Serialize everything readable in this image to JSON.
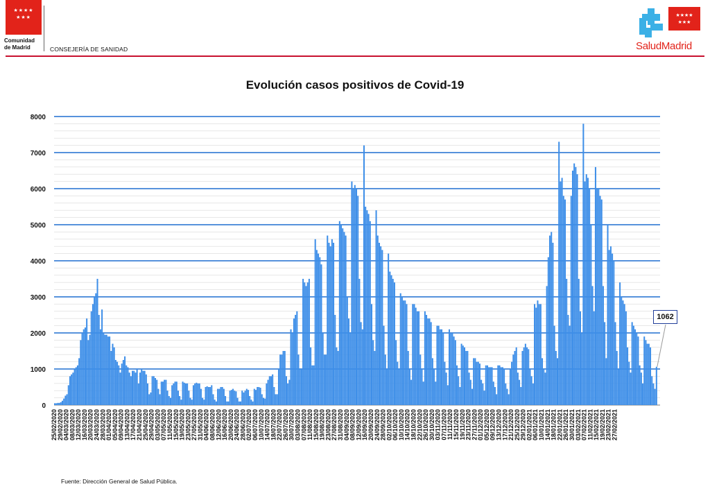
{
  "header": {
    "org_name_line1": "Comunidad",
    "org_name_line2": "de Madrid",
    "department": "CONSEJERÍA DE SANIDAD",
    "brand": "SaludMadrid",
    "brand_color": "#e2231a"
  },
  "footer": {
    "source": "Fuente: Dirección General de Salud Pública."
  },
  "chart_data": {
    "type": "bar",
    "title": "Evolución casos positivos de Covid-19",
    "xlabel": "",
    "ylabel": "",
    "ylim": [
      0,
      8000
    ],
    "yticks": [
      0,
      1000,
      2000,
      3000,
      4000,
      5000,
      6000,
      7000,
      8000
    ],
    "grid": true,
    "bar_color": "#3d8ee8",
    "gridline_color": "#1f6fd1",
    "x_tick_labels": [
      "25/02/2020",
      "29/02/2020",
      "04/03/2020",
      "08/03/2020",
      "12/03/2020",
      "16/03/2020",
      "20/03/2020",
      "24/03/2020",
      "28/03/2020",
      "01/04/2020",
      "05/04/2020",
      "09/04/2020",
      "13/04/2020",
      "17/04/2020",
      "21/04/2020",
      "25/04/2020",
      "29/04/2020",
      "03/05/2020",
      "07/05/2020",
      "11/05/2020",
      "15/05/2020",
      "19/05/2020",
      "23/05/2020",
      "27/05/2020",
      "31/05/2020",
      "04/06/2020",
      "08/06/2020",
      "12/06/2020",
      "16/06/2020",
      "20/06/2020",
      "24/06/2020",
      "28/06/2020",
      "02/07/2020",
      "06/07/2020",
      "10/07/2020",
      "14/07/2020",
      "18/07/2020",
      "22/07/2020",
      "26/07/2020",
      "30/07/2020",
      "03/08/2020",
      "07/08/2020",
      "11/08/2020",
      "15/08/2020",
      "19/08/2020",
      "23/08/2020",
      "27/08/2020",
      "31/08/2020",
      "04/09/2020",
      "08/09/2020",
      "12/09/2020",
      "16/09/2020",
      "20/09/2020",
      "24/09/2020",
      "28/09/2020",
      "02/10/2020",
      "06/10/2020",
      "10/10/2020",
      "14/10/2020",
      "18/10/2020",
      "22/10/2020",
      "26/10/2020",
      "30/10/2020",
      "03/11/2020",
      "07/11/2020",
      "11/11/2020",
      "15/11/2020",
      "19/11/2020",
      "23/11/2020",
      "27/11/2020",
      "01/12/2020",
      "05/12/2020",
      "09/12/2020",
      "13/12/2020",
      "17/12/2020",
      "21/12/2020",
      "25/12/2020",
      "29/12/2020",
      "02/01/2021",
      "06/01/2021",
      "10/01/2021",
      "14/01/2021",
      "18/01/2021",
      "22/01/2021",
      "26/01/2021",
      "30/01/2021",
      "03/02/2021",
      "07/02/2021",
      "11/02/2021",
      "15/02/2021",
      "19/02/2021",
      "23/02/2021",
      "27/02/2021"
    ],
    "periods_per_label": 4,
    "series": [
      {
        "values": [
          50,
          50,
          60,
          60,
          80,
          120,
          180,
          260,
          300,
          550,
          800,
          850,
          900,
          1000,
          1050,
          1100,
          1300,
          1800,
          2000,
          2100,
          2150,
          2400,
          1800,
          1950,
          2600,
          2800,
          3000,
          3100,
          3500,
          2500,
          2100,
          2650,
          2000,
          1950,
          1950,
          1900,
          1900,
          1500,
          1700,
          1600,
          1250,
          1200,
          1100,
          900,
          1150,
          1250,
          1350,
          1100,
          1050,
          900,
          800,
          950,
          950,
          900,
          1000,
          600,
          900,
          1000,
          950,
          950,
          850,
          600,
          300,
          350,
          800,
          800,
          750,
          700,
          450,
          300,
          650,
          650,
          700,
          700,
          400,
          250,
          200,
          550,
          600,
          650,
          650,
          400,
          250,
          150,
          650,
          620,
          600,
          600,
          400,
          200,
          150,
          550,
          600,
          620,
          600,
          600,
          450,
          200,
          150,
          500,
          520,
          500,
          500,
          550,
          300,
          150,
          100,
          450,
          450,
          500,
          500,
          450,
          250,
          100,
          100,
          400,
          420,
          450,
          400,
          380,
          200,
          100,
          100,
          400,
          350,
          400,
          450,
          420,
          250,
          150,
          100,
          450,
          420,
          500,
          500,
          480,
          300,
          200,
          180,
          600,
          700,
          800,
          800,
          850,
          500,
          300,
          300,
          1000,
          1400,
          1400,
          1500,
          1500,
          800,
          600,
          700,
          2100,
          2000,
          2400,
          2500,
          2600,
          1400,
          1000,
          1000,
          3500,
          3400,
          3300,
          3400,
          3500,
          1600,
          1100,
          1100,
          4600,
          4300,
          4200,
          4100,
          3900,
          2000,
          1400,
          1400,
          4700,
          4500,
          4400,
          4600,
          4500,
          2500,
          1600,
          1500,
          5100,
          5000,
          4900,
          4800,
          4700,
          3000,
          2400,
          2000,
          6200,
          6000,
          6100,
          6000,
          5800,
          3500,
          2300,
          2100,
          7200,
          5500,
          5400,
          5300,
          5100,
          2800,
          1800,
          1500,
          5400,
          4700,
          4500,
          4400,
          4300,
          2200,
          1400,
          1000,
          4200,
          3700,
          3600,
          3500,
          3400,
          1800,
          1200,
          1000,
          3100,
          3000,
          2900,
          2900,
          2800,
          1500,
          1000,
          700,
          2800,
          2800,
          2700,
          2600,
          2600,
          1400,
          1000,
          650,
          2600,
          2500,
          2400,
          2400,
          2300,
          1300,
          1000,
          650,
          2200,
          2200,
          2100,
          2100,
          2000,
          1200,
          900,
          550,
          2100,
          2000,
          2000,
          1900,
          1800,
          1100,
          800,
          500,
          1700,
          1650,
          1600,
          1500,
          1500,
          900,
          700,
          450,
          1300,
          1300,
          1200,
          1200,
          1150,
          700,
          600,
          400,
          1100,
          1100,
          1050,
          1050,
          1050,
          650,
          500,
          300,
          1100,
          1100,
          1050,
          1050,
          1000,
          600,
          450,
          300,
          1000,
          1200,
          1400,
          1500,
          1600,
          900,
          700,
          500,
          1500,
          1600,
          1700,
          1600,
          1550,
          1000,
          800,
          600,
          2800,
          2700,
          2900,
          2800,
          2800,
          1300,
          1000,
          900,
          3300,
          4100,
          4700,
          4800,
          4500,
          2200,
          1500,
          1300,
          7300,
          6200,
          6300,
          5800,
          5700,
          3500,
          2500,
          2200,
          5800,
          6500,
          6700,
          6600,
          6400,
          3500,
          2600,
          2000,
          7800,
          6200,
          6400,
          6300,
          6000,
          5000,
          3300,
          2600,
          6600,
          6000,
          6000,
          5800,
          5700,
          3300,
          2300,
          1300,
          5000,
          4300,
          4400,
          4200,
          4000,
          2300,
          1500,
          1000,
          3400,
          3000,
          2900,
          2800,
          2600,
          1600,
          1200,
          900,
          2300,
          2200,
          2100,
          2000,
          1900,
          1100,
          900,
          600,
          1900,
          1800,
          1700,
          1700,
          1600,
          800,
          600,
          450,
          1062
        ]
      }
    ],
    "annotations": [
      {
        "text": "1062"
      }
    ]
  }
}
